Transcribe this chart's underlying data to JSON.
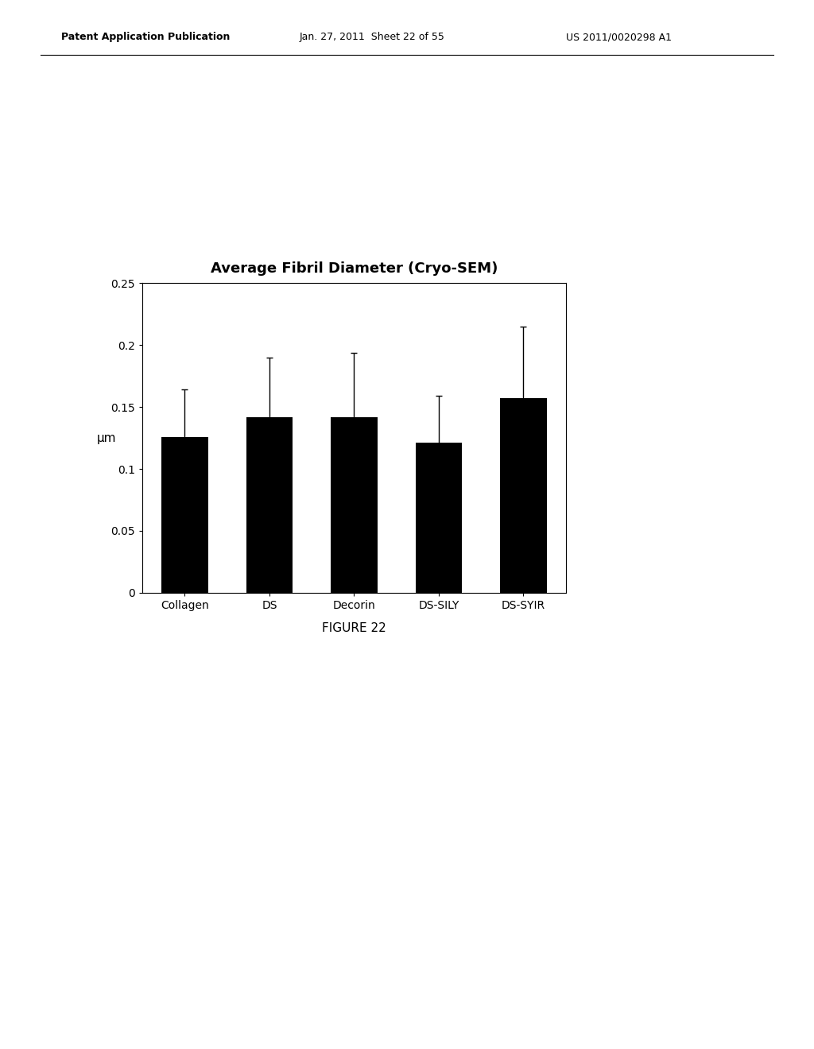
{
  "title": "Average Fibril Diameter (Cryo-SEM)",
  "categories": [
    "Collagen",
    "DS",
    "Decorin",
    "DS-SILY",
    "DS-SYIR"
  ],
  "values": [
    0.126,
    0.142,
    0.142,
    0.121,
    0.157
  ],
  "errors": [
    0.038,
    0.048,
    0.052,
    0.038,
    0.058
  ],
  "bar_color": "#000000",
  "ylabel": "μm",
  "ylim": [
    0,
    0.25
  ],
  "yticks": [
    0,
    0.05,
    0.1,
    0.15,
    0.2,
    0.25
  ],
  "figure_caption": "FIGURE 22",
  "title_fontsize": 13,
  "label_fontsize": 11,
  "tick_fontsize": 10,
  "caption_fontsize": 11,
  "bar_width": 0.55,
  "background_color": "#ffffff",
  "header_left": "Patent Application Publication",
  "header_mid": "Jan. 27, 2011  Sheet 22 of 55",
  "header_right": "US 2011/0020298 A1"
}
